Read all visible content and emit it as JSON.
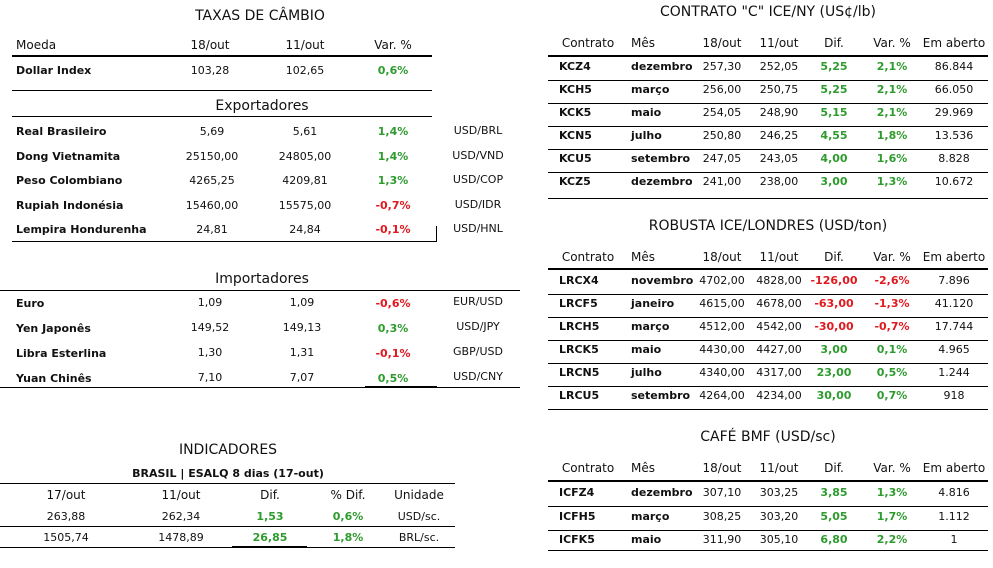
{
  "colors": {
    "positive": "#2e9b2e",
    "negative": "#e0191f"
  },
  "taxas": {
    "title": "TAXAS DE CÂMBIO",
    "headers": [
      "Moeda",
      "18/out",
      "11/out",
      "Var. %"
    ],
    "dollar_index": {
      "name": "Dollar Index",
      "v1": "103,28",
      "v2": "102,65",
      "var": "0,6%"
    },
    "exportadores_title": "Exportadores",
    "exportadores": [
      {
        "name": "Real Brasileiro",
        "v1": "5,69",
        "v2": "5,61",
        "var": "1,4%",
        "code": "USD/BRL"
      },
      {
        "name": "Dong Vietnamita",
        "v1": "25150,00",
        "v2": "24805,00",
        "var": "1,4%",
        "code": "USD/VND"
      },
      {
        "name": "Peso Colombiano",
        "v1": "4265,25",
        "v2": "4209,81",
        "var": "1,3%",
        "code": "USD/COP"
      },
      {
        "name": "Rupiah Indonésia",
        "v1": "15460,00",
        "v2": "15575,00",
        "var": "-0,7%",
        "code": "USD/IDR"
      },
      {
        "name": "Lempira Hondurenha",
        "v1": "24,81",
        "v2": "24,84",
        "var": "-0,1%",
        "code": "USD/HNL"
      }
    ],
    "importadores_title": "Importadores",
    "importadores": [
      {
        "name": "Euro",
        "v1": "1,09",
        "v2": "1,09",
        "var": "-0,6%",
        "code": "EUR/USD"
      },
      {
        "name": "Yen Japonês",
        "v1": "149,52",
        "v2": "149,13",
        "var": "0,3%",
        "code": "USD/JPY"
      },
      {
        "name": "Libra Esterlina",
        "v1": "1,30",
        "v2": "1,31",
        "var": "-0,1%",
        "code": "GBP/USD"
      },
      {
        "name": "Yuan Chinês",
        "v1": "7,10",
        "v2": "7,07",
        "var": "0,5%",
        "code": "USD/CNY"
      }
    ]
  },
  "indicadores": {
    "title": "INDICADORES",
    "subtitle": "BRASIL | ESALQ 8 dias (17-out)",
    "headers": [
      "17/out",
      "11/out",
      "Dif.",
      "% Dif.",
      "Unidade"
    ],
    "rows": [
      {
        "v1": "263,88",
        "v2": "262,34",
        "dif": "1,53",
        "pct": "0,6%",
        "unit": "USD/sc."
      },
      {
        "v1": "1505,74",
        "v2": "1478,89",
        "dif": "26,85",
        "pct": "1,8%",
        "unit": "BRL/sc."
      }
    ]
  },
  "contrato_c": {
    "title": "CONTRATO \"C\" ICE/NY (US¢/lb)",
    "headers": [
      "Contrato",
      "Mês",
      "18/out",
      "11/out",
      "Dif.",
      "Var. %",
      "Em aberto"
    ],
    "rows": [
      {
        "code": "KCZ4",
        "mes": "dezembro",
        "v1": "257,30",
        "v2": "252,05",
        "dif": "5,25",
        "var": "2,1%",
        "open": "86.844"
      },
      {
        "code": "KCH5",
        "mes": "março",
        "v1": "256,00",
        "v2": "250,75",
        "dif": "5,25",
        "var": "2,1%",
        "open": "66.050"
      },
      {
        "code": "KCK5",
        "mes": "maio",
        "v1": "254,05",
        "v2": "248,90",
        "dif": "5,15",
        "var": "2,1%",
        "open": "29.969"
      },
      {
        "code": "KCN5",
        "mes": "julho",
        "v1": "250,80",
        "v2": "246,25",
        "dif": "4,55",
        "var": "1,8%",
        "open": "13.536"
      },
      {
        "code": "KCU5",
        "mes": "setembro",
        "v1": "247,05",
        "v2": "243,05",
        "dif": "4,00",
        "var": "1,6%",
        "open": "8.828"
      },
      {
        "code": "KCZ5",
        "mes": "dezembro",
        "v1": "241,00",
        "v2": "238,00",
        "dif": "3,00",
        "var": "1,3%",
        "open": "10.672"
      }
    ]
  },
  "robusta": {
    "title": "ROBUSTA ICE/LONDRES (USD/ton)",
    "headers": [
      "Contrato",
      "Mês",
      "18/out",
      "11/out",
      "Dif.",
      "Var. %",
      "Em aberto"
    ],
    "rows": [
      {
        "code": "LRCX4",
        "mes": "novembro",
        "v1": "4702,00",
        "v2": "4828,00",
        "dif": "-126,00",
        "var": "-2,6%",
        "open": "7.896"
      },
      {
        "code": "LRCF5",
        "mes": "janeiro",
        "v1": "4615,00",
        "v2": "4678,00",
        "dif": "-63,00",
        "var": "-1,3%",
        "open": "41.120"
      },
      {
        "code": "LRCH5",
        "mes": "março",
        "v1": "4512,00",
        "v2": "4542,00",
        "dif": "-30,00",
        "var": "-0,7%",
        "open": "17.744"
      },
      {
        "code": "LRCK5",
        "mes": "maio",
        "v1": "4430,00",
        "v2": "4427,00",
        "dif": "3,00",
        "var": "0,1%",
        "open": "4.965"
      },
      {
        "code": "LRCN5",
        "mes": "julho",
        "v1": "4340,00",
        "v2": "4317,00",
        "dif": "23,00",
        "var": "0,5%",
        "open": "1.244"
      },
      {
        "code": "LRCU5",
        "mes": "setembro",
        "v1": "4264,00",
        "v2": "4234,00",
        "dif": "30,00",
        "var": "0,7%",
        "open": "918"
      }
    ]
  },
  "bmf": {
    "title": "CAFÉ BMF (USD/sc)",
    "headers": [
      "Contrato",
      "Mês",
      "18/out",
      "11/out",
      "Dif.",
      "Var. %",
      "Em aberto"
    ],
    "rows": [
      {
        "code": "ICFZ4",
        "mes": "dezembro",
        "v1": "307,10",
        "v2": "303,25",
        "dif": "3,85",
        "var": "1,3%",
        "open": "4.816"
      },
      {
        "code": "ICFH5",
        "mes": "março",
        "v1": "308,25",
        "v2": "303,20",
        "dif": "5,05",
        "var": "1,7%",
        "open": "1.112"
      },
      {
        "code": "ICFK5",
        "mes": "maio",
        "v1": "311,90",
        "v2": "305,10",
        "dif": "6,80",
        "var": "2,2%",
        "open": "1"
      }
    ]
  }
}
